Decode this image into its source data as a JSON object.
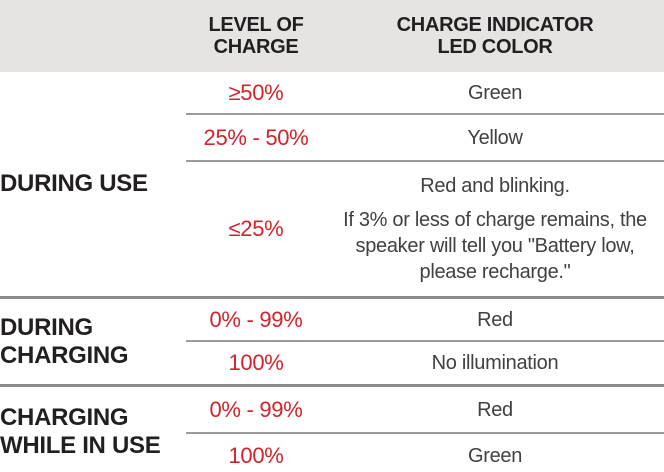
{
  "header": {
    "level_of_charge": "LEVEL OF CHARGE",
    "led_color": "CHARGE INDICATOR LED COLOR"
  },
  "sections": [
    {
      "label": "DURING USE",
      "rows": [
        {
          "level": "≥50%",
          "led": "Green"
        },
        {
          "level": "25% - 50%",
          "led": "Yellow"
        },
        {
          "level": "≤25%",
          "led": "Red and blinking.",
          "note": "If 3% or less of charge remains, the speaker will tell you \"Battery low, please recharge.\""
        }
      ]
    },
    {
      "label": "DURING CHARGING",
      "rows": [
        {
          "level": "0% - 99%",
          "led": "Red"
        },
        {
          "level": "100%",
          "led": "No illumination"
        }
      ]
    },
    {
      "label": "CHARGING WHILE IN USE",
      "rows": [
        {
          "level": "0% - 99%",
          "led": "Red"
        },
        {
          "level": "100%",
          "led": "Green"
        }
      ]
    }
  ],
  "colors": {
    "accent_red": "#d2232a",
    "header_bg": "#e5e4e2",
    "divider_gray": "#9b9b9b",
    "section_divider_gray": "#8d8d8f",
    "bottom_bar_gray": "#a4a6a9",
    "text_dark": "#231f20",
    "text_body": "#414042"
  }
}
